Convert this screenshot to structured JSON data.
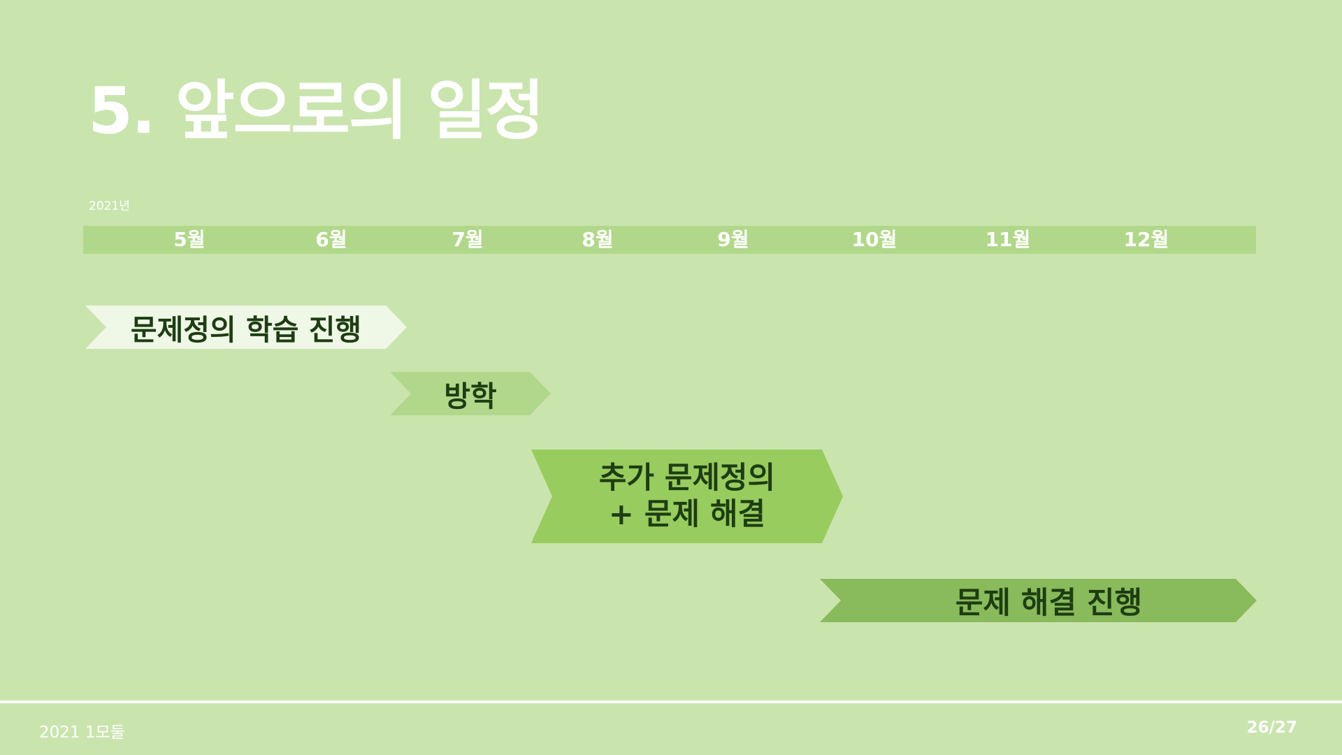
{
  "title": "5. 앞으로의 일정",
  "year": "2021년",
  "months": [
    "5월",
    "6월",
    "7월",
    "8월",
    "9월",
    "10월",
    "11월",
    "12월"
  ],
  "tasks": [
    {
      "label": "문제정의 학습 진행"
    },
    {
      "label": "방학"
    },
    {
      "label_line1": "추가 문제정의",
      "label_line2": "+ 문제 해결"
    },
    {
      "label": "문제 해결 진행"
    }
  ],
  "footer": {
    "left": "2021 1모둘",
    "page": "26/27"
  },
  "colors": {
    "background": "#cae4ae",
    "month_bar": "#b1d88a",
    "task1": "#eff7e7",
    "task2": "#b1d88a",
    "task3": "#98cc5f",
    "task4": "#89ba5b",
    "text_dark": "#1d3d12"
  }
}
